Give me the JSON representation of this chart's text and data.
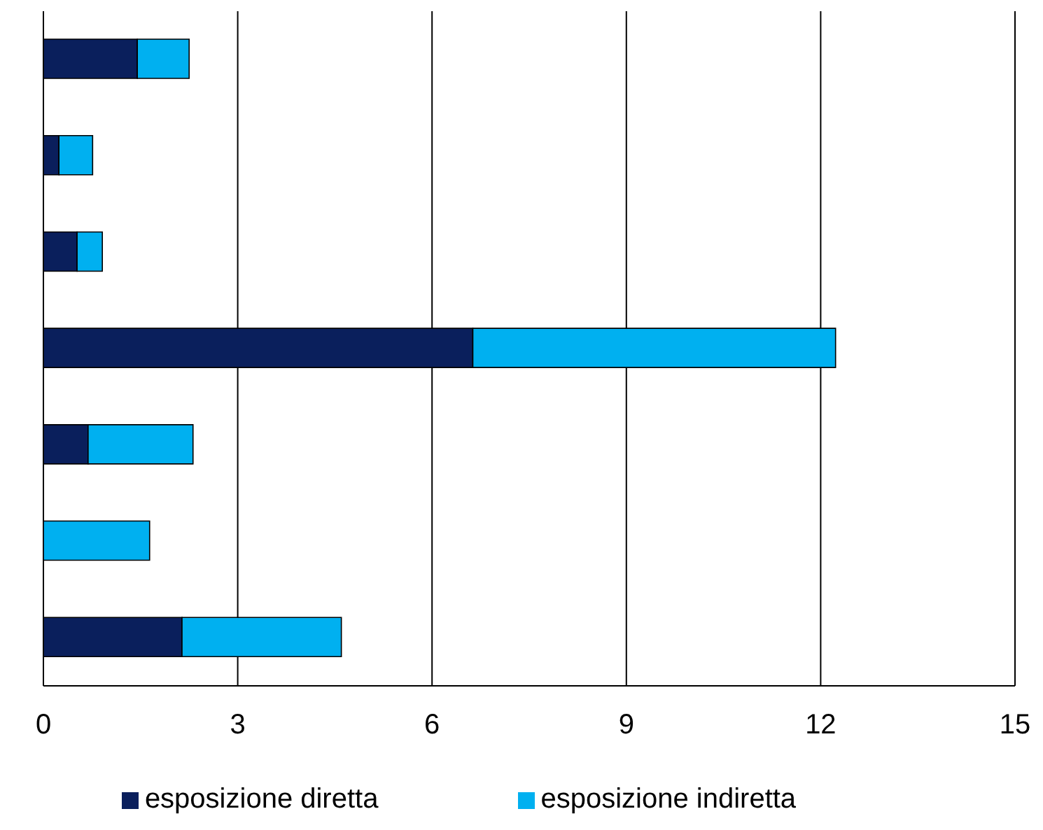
{
  "chart_data": {
    "type": "bar",
    "orientation": "horizontal",
    "stacked": true,
    "categories": [
      null,
      null,
      null,
      null,
      null,
      null,
      null
    ],
    "series": [
      {
        "name": "esposizione diretta",
        "color": "#0a1f5c",
        "values": [
          1.45,
          0.24,
          0.52,
          6.63,
          0.69,
          0,
          2.14
        ]
      },
      {
        "name": "esposizione indiretta",
        "color": "#00b0f0",
        "values": [
          0.8,
          0.52,
          0.39,
          5.6,
          1.62,
          1.64,
          2.46
        ]
      }
    ],
    "xlim": [
      0,
      15
    ],
    "xticks": [
      0,
      3,
      6,
      9,
      12,
      15
    ],
    "grid": "x",
    "legend": "bottom",
    "tick_labels": "x"
  }
}
